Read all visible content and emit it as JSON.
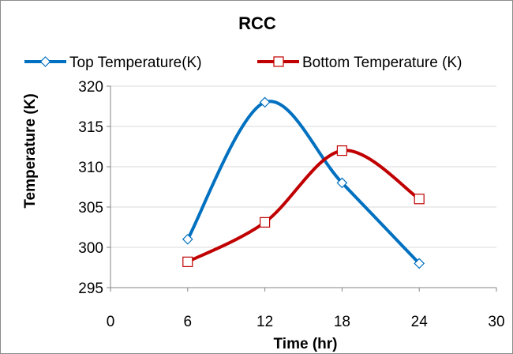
{
  "chart_data": {
    "type": "line",
    "title": "RCC",
    "xlabel": "Time (hr)",
    "ylabel": "Temperature (K)",
    "xlim": [
      0,
      30
    ],
    "ylim": [
      295,
      320
    ],
    "xticks": [
      "0",
      "6",
      "12",
      "18",
      "24",
      "30"
    ],
    "yticks": [
      "295",
      "300",
      "305",
      "310",
      "315",
      "320"
    ],
    "grid": "horizontal",
    "legend_position": "top",
    "smooth": true,
    "x": [
      6,
      12,
      18,
      24
    ],
    "series": [
      {
        "name": "Top Temperature(K)",
        "values": [
          301,
          318,
          308,
          298
        ],
        "color": "#0070C0",
        "marker": "diamond"
      },
      {
        "name": "Bottom Temperature (K)",
        "values": [
          298.2,
          303.1,
          312,
          306
        ],
        "color": "#C00000",
        "marker": "square"
      }
    ]
  }
}
